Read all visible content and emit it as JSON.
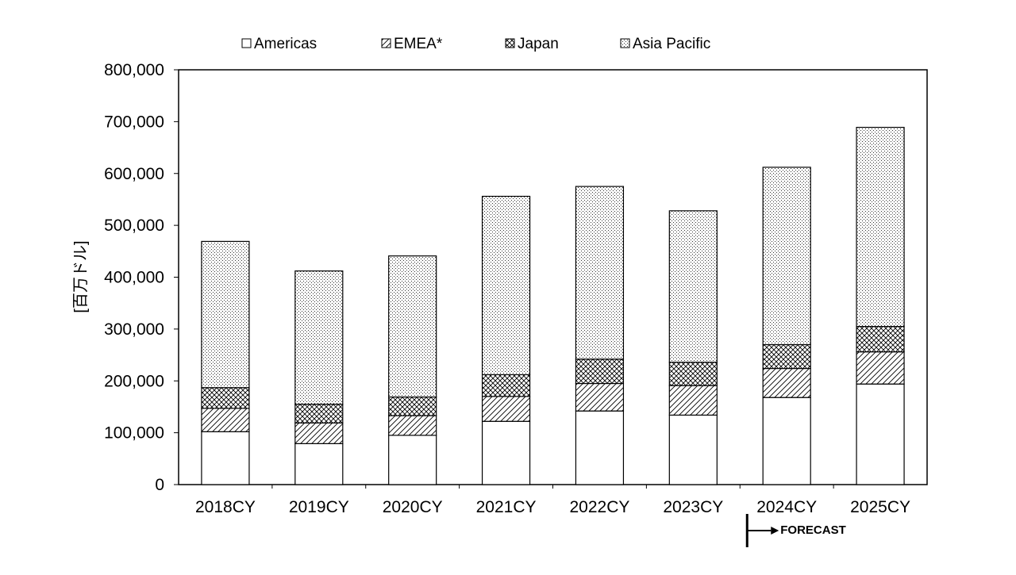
{
  "chart_data": {
    "type": "bar",
    "stacked": true,
    "categories": [
      "2018CY",
      "2019CY",
      "2020CY",
      "2021CY",
      "2022CY",
      "2023CY",
      "2024CY",
      "2025CY"
    ],
    "series": [
      {
        "name": "Americas",
        "pattern": "blank",
        "values": [
          102000,
          79000,
          95000,
          122000,
          142000,
          134000,
          168000,
          194000
        ]
      },
      {
        "name": "EMEA*",
        "pattern": "diagonal-hatch",
        "values": [
          45000,
          40000,
          38000,
          48000,
          53000,
          57000,
          56000,
          62000
        ]
      },
      {
        "name": "Japan",
        "pattern": "crosshatch",
        "values": [
          40000,
          36000,
          36000,
          42000,
          47000,
          45000,
          46000,
          49000
        ]
      },
      {
        "name": "Asia Pacific",
        "pattern": "dots",
        "values": [
          282000,
          257000,
          272000,
          344000,
          333000,
          292000,
          342000,
          384000
        ]
      }
    ],
    "ylabel": "[百万ドル]",
    "ylim": [
      0,
      800000
    ],
    "yticks": [
      "0",
      "100,000",
      "200,000",
      "300,000",
      "400,000",
      "500,000",
      "600,000",
      "700,000",
      "800,000"
    ],
    "grid": false,
    "legend_position": "top",
    "annotation": {
      "text": "FORECAST",
      "starts_at_category": "2024CY"
    }
  },
  "colors": {
    "fill": "#ffffff",
    "stroke": "#000000",
    "pattern": "#000000"
  }
}
